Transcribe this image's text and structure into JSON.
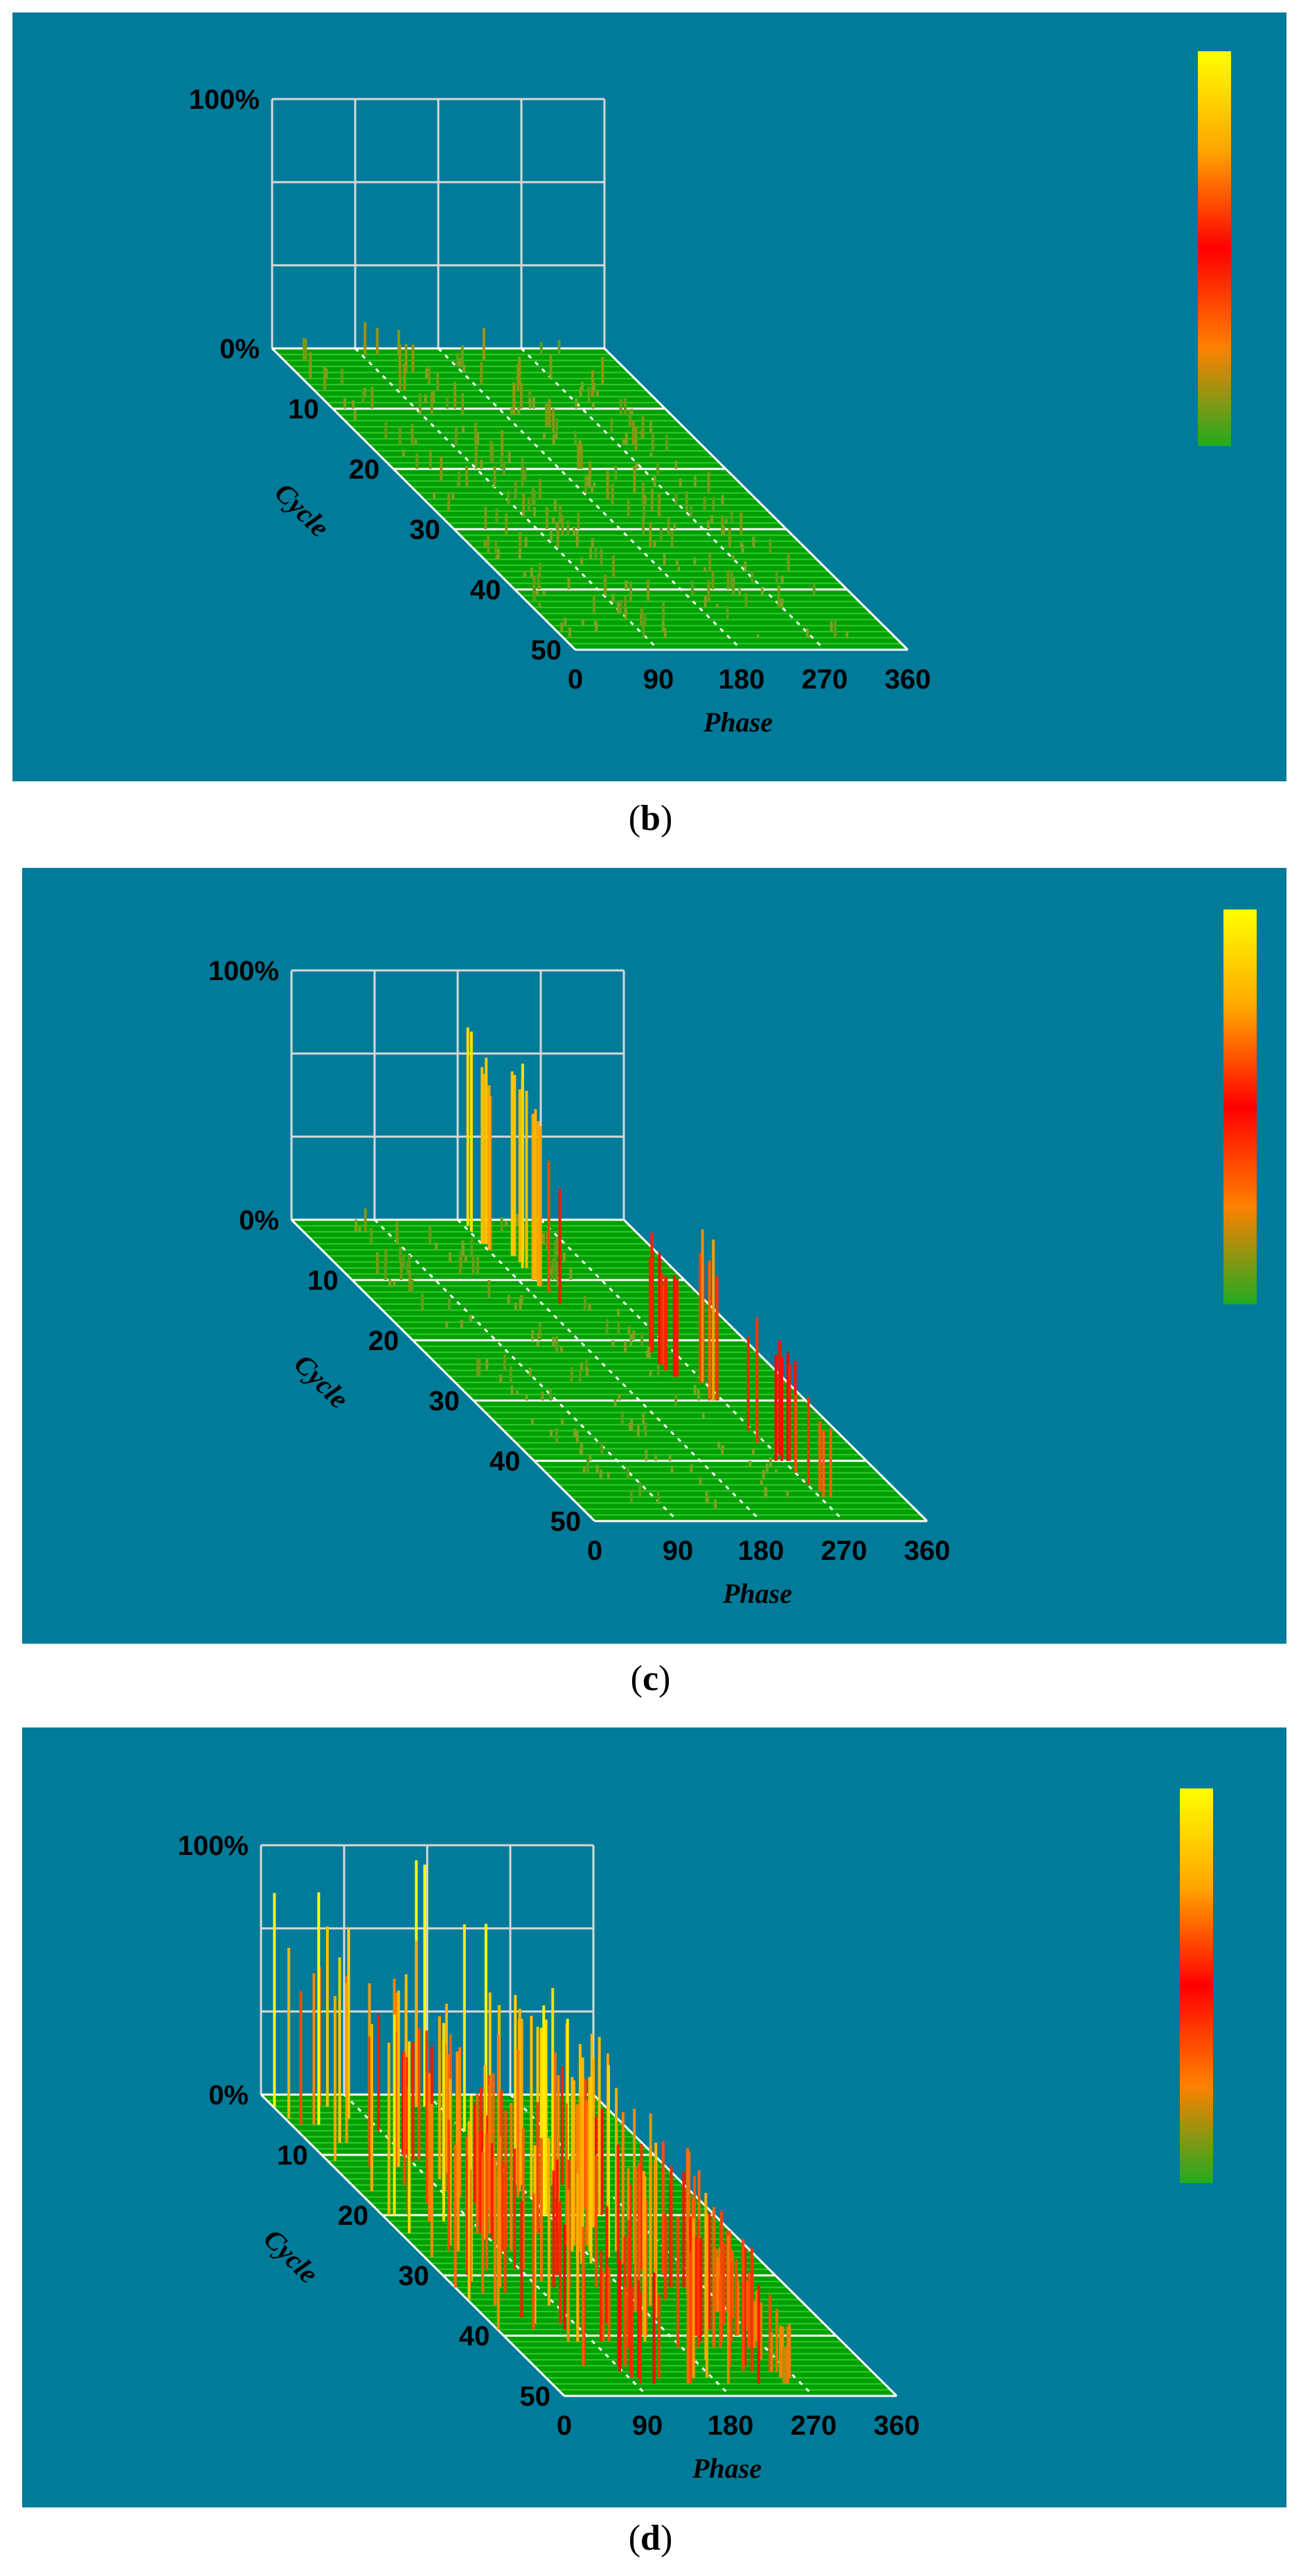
{
  "chart_data": [
    {
      "type": "bar",
      "panel_label": "b",
      "z_ticks": [
        "100%",
        "0%"
      ],
      "y_ticks": [
        "10",
        "20",
        "30",
        "40",
        "50"
      ],
      "x_ticks": [
        "0",
        "90",
        "180",
        "270",
        "360"
      ],
      "y_label": "Cycle",
      "x_label": "Phase",
      "zlim": [
        0,
        100
      ],
      "xlim": [
        0,
        360
      ],
      "ylim": [
        0,
        50
      ],
      "colorscale": [
        "#ffff00",
        "#ffa500",
        "#ff0000",
        "#ff8000",
        "#22aa22"
      ],
      "clusters": [
        {
          "phase": [
            5,
            60
          ],
          "cycles": [
            1,
            48
          ],
          "amplitude": [
            2,
            12
          ]
        },
        {
          "phase": [
            85,
            135
          ],
          "cycles": [
            1,
            48
          ],
          "amplitude": [
            3,
            13
          ]
        },
        {
          "phase": [
            180,
            240
          ],
          "cycles": [
            1,
            48
          ],
          "amplitude": [
            2,
            14
          ]
        },
        {
          "phase": [
            260,
            320
          ],
          "cycles": [
            1,
            48
          ],
          "amplitude": [
            2,
            12
          ]
        }
      ]
    },
    {
      "type": "bar",
      "panel_label": "c",
      "z_ticks": [
        "100%",
        "0%"
      ],
      "y_ticks": [
        "10",
        "20",
        "30",
        "40",
        "50"
      ],
      "x_ticks": [
        "0",
        "90",
        "180",
        "270",
        "360"
      ],
      "y_label": "Cycle",
      "x_label": "Phase",
      "zlim": [
        0,
        100
      ],
      "xlim": [
        0,
        360
      ],
      "ylim": [
        0,
        50
      ],
      "colorscale": [
        "#ffff00",
        "#ffa500",
        "#ff0000",
        "#ff8000",
        "#22aa22"
      ],
      "clusters": [
        {
          "phase": [
            30,
            90
          ],
          "cycles": [
            1,
            48
          ],
          "amplitude": [
            2,
            10
          ]
        },
        {
          "phase": [
            120,
            160
          ],
          "cycles": [
            1,
            48
          ],
          "amplitude": [
            2,
            8
          ]
        },
        {
          "phase": [
            175,
            185
          ],
          "cycles": [
            1,
            6
          ],
          "amplitude": [
            75,
            95
          ]
        },
        {
          "phase": [
            195,
            205
          ],
          "cycles": [
            6,
            14
          ],
          "amplitude": [
            70,
            85
          ]
        },
        {
          "phase": [
            240,
            250
          ],
          "cycles": [
            22,
            28
          ],
          "amplitude": [
            35,
            55
          ]
        },
        {
          "phase": [
            255,
            270
          ],
          "cycles": [
            26,
            40
          ],
          "amplitude": [
            45,
            80
          ]
        },
        {
          "phase": [
            270,
            285
          ],
          "cycles": [
            38,
            46
          ],
          "amplitude": [
            35,
            50
          ]
        },
        {
          "phase": [
            210,
            250
          ],
          "cycles": [
            1,
            48
          ],
          "amplitude": [
            2,
            8
          ]
        }
      ]
    },
    {
      "type": "bar",
      "panel_label": "d",
      "z_ticks": [
        "100%",
        "0%"
      ],
      "y_ticks": [
        "10",
        "20",
        "30",
        "40",
        "50"
      ],
      "x_ticks": [
        "0",
        "90",
        "180",
        "270",
        "360"
      ],
      "y_label": "Cycle",
      "x_label": "Phase",
      "zlim": [
        0,
        100
      ],
      "xlim": [
        0,
        360
      ],
      "ylim": [
        0,
        50
      ],
      "colorscale": [
        "#ffff00",
        "#ffa500",
        "#ff0000",
        "#ff8000",
        "#22aa22"
      ],
      "clusters": [
        {
          "phase": [
            0,
            85
          ],
          "cycles": [
            1,
            48
          ],
          "amplitude": [
            55,
            100
          ]
        },
        {
          "phase": [
            85,
            125
          ],
          "cycles": [
            6,
            48
          ],
          "amplitude": [
            40,
            75
          ]
        },
        {
          "phase": [
            145,
            200
          ],
          "cycles": [
            1,
            48
          ],
          "amplitude": [
            60,
            100
          ]
        },
        {
          "phase": [
            200,
            250
          ],
          "cycles": [
            14,
            48
          ],
          "amplitude": [
            40,
            80
          ]
        },
        {
          "phase": [
            250,
            270
          ],
          "cycles": [
            34,
            48
          ],
          "amplitude": [
            20,
            40
          ]
        }
      ]
    }
  ],
  "captions": {
    "b": {
      "open": "(",
      "letter": "b",
      "close": ")"
    },
    "c": {
      "open": "(",
      "letter": "c",
      "close": ")"
    },
    "d": {
      "open": "(",
      "letter": "d",
      "close": ")"
    }
  }
}
